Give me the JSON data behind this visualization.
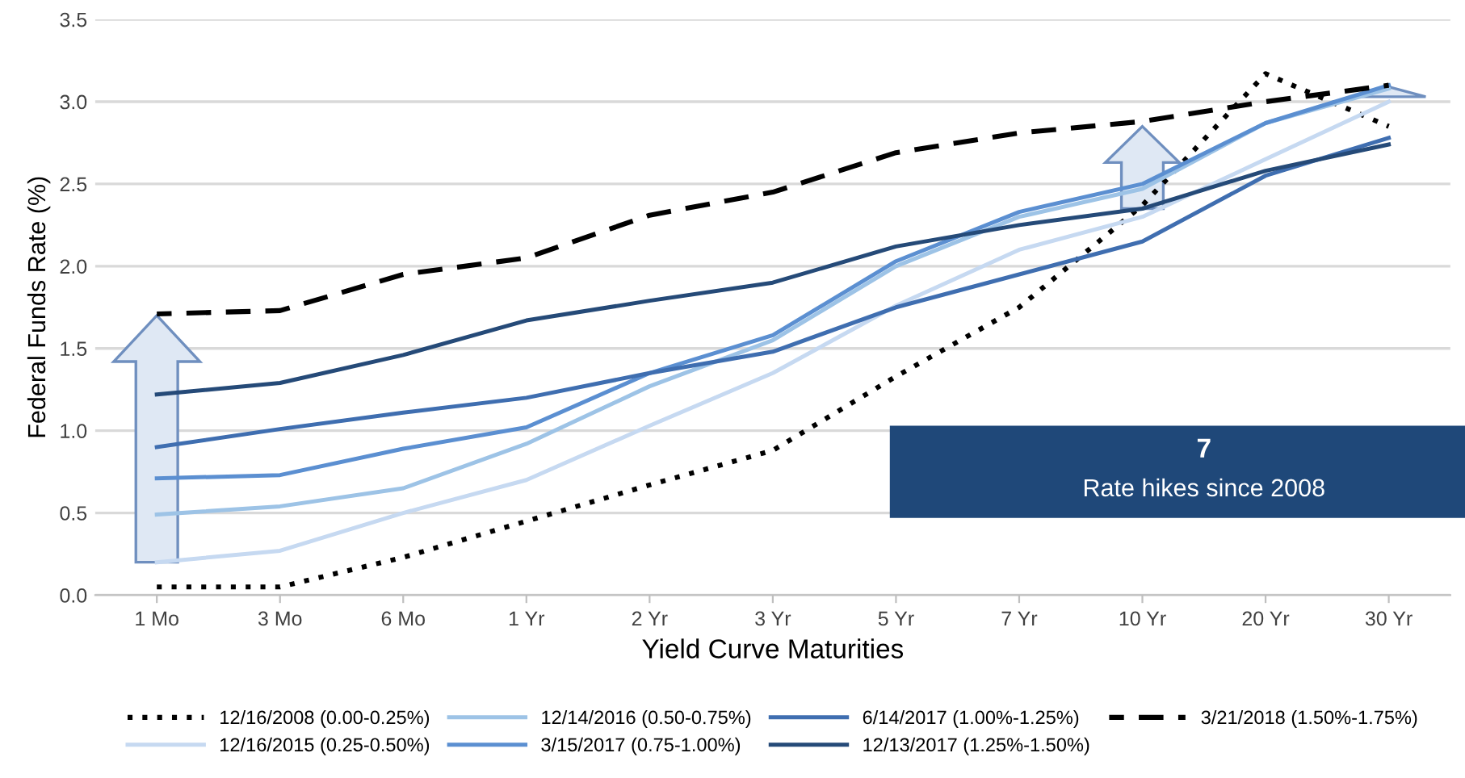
{
  "chart_data": {
    "type": "line",
    "xlabel": "Yield Curve Maturities",
    "ylabel": "Federal Funds Rate (%)",
    "categories": [
      "1 Mo",
      "3 Mo",
      "6 Mo",
      "1 Yr",
      "2 Yr",
      "3 Yr",
      "5 Yr",
      "7 Yr",
      "10 Yr",
      "20 Yr",
      "30 Yr"
    ],
    "series": [
      {
        "name": "12/16/2008 (0.00-0.25%)",
        "color": "#000000",
        "line_style": "dotted",
        "values": [
          0.05,
          0.05,
          0.23,
          0.45,
          0.67,
          0.88,
          1.33,
          1.75,
          2.37,
          3.17,
          2.85
        ]
      },
      {
        "name": "12/16/2015 (0.25-0.50%)",
        "color": "#c6d9f1",
        "line_style": "solid",
        "values": [
          0.2,
          0.27,
          0.5,
          0.7,
          1.03,
          1.35,
          1.76,
          2.1,
          2.3,
          2.65,
          3.0
        ]
      },
      {
        "name": "12/14/2016 (0.50-0.75%)",
        "color": "#9dc3e6",
        "line_style": "solid",
        "values": [
          0.49,
          0.54,
          0.65,
          0.92,
          1.27,
          1.55,
          2.0,
          2.3,
          2.47,
          2.87,
          3.08
        ]
      },
      {
        "name": "3/15/2017 (0.75-1.00%)",
        "color": "#5b8fd1",
        "line_style": "solid",
        "values": [
          0.71,
          0.73,
          0.89,
          1.02,
          1.35,
          1.58,
          2.03,
          2.33,
          2.5,
          2.87,
          3.1
        ]
      },
      {
        "name": "6/14/2017 (1.00%-1.25%)",
        "color": "#3f6eb0",
        "line_style": "solid",
        "values": [
          0.9,
          1.01,
          1.11,
          1.2,
          1.35,
          1.48,
          1.75,
          1.95,
          2.15,
          2.55,
          2.78
        ]
      },
      {
        "name": "12/13/2017 (1.25%-1.50%)",
        "color": "#254a78",
        "line_style": "solid",
        "values": [
          1.22,
          1.29,
          1.46,
          1.67,
          1.79,
          1.9,
          2.12,
          2.25,
          2.35,
          2.58,
          2.74
        ]
      },
      {
        "name": "3/21/2018 (1.50%-1.75%)",
        "color": "#000000",
        "line_style": "dashed",
        "values": [
          1.71,
          1.73,
          1.95,
          2.05,
          2.31,
          2.45,
          2.69,
          2.81,
          2.88,
          3.0,
          3.1
        ]
      }
    ],
    "ylim": [
      0,
      3.5
    ],
    "yticks": [
      {
        "value": 0,
        "label": "0.0"
      },
      {
        "value": 0.5,
        "label": "0.5"
      },
      {
        "value": 1,
        "label": "1.0"
      },
      {
        "value": 1.5,
        "label": "1.5"
      },
      {
        "value": 2,
        "label": "2.0"
      },
      {
        "value": 2.5,
        "label": "2.5"
      },
      {
        "value": 3,
        "label": "3.0"
      },
      {
        "value": 3.5,
        "label": "3.5"
      }
    ],
    "grid": "y",
    "legend": "bottom",
    "marker": "none",
    "annotations": [
      "7",
      "Rate hikes since 2008"
    ]
  }
}
